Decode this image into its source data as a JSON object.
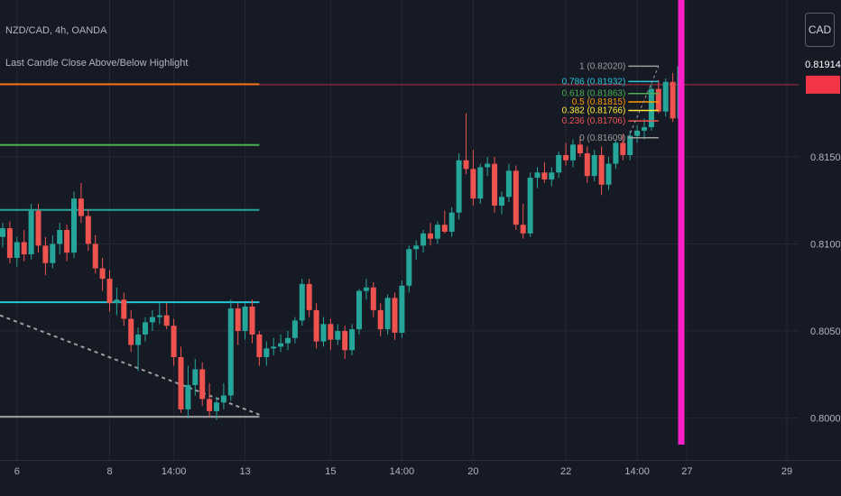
{
  "header": {
    "symbol": "NZD/CAD, 4h, OANDA",
    "indicator": "Last Candle Close Above/Below Highlight"
  },
  "toolbar": {
    "currency_label": "CAD"
  },
  "colors": {
    "background": "#161a25",
    "grid": "#242832",
    "up": "#26a69a",
    "down": "#ef5350",
    "highlight": "#ff1fc8",
    "last_price_bg": "#f23645"
  },
  "chart_data": {
    "type": "candlestick",
    "symbol": "NZD/CAD",
    "timeframe": "4h",
    "broker": "OANDA",
    "ylim": [
      0.7976,
      0.824
    ],
    "y_ticks": [
      "0.80000",
      "0.80500",
      "0.81000",
      "0.81500"
    ],
    "y_tick_values": [
      0.8,
      0.805,
      0.81,
      0.815
    ],
    "x_ticks": [
      "6",
      "8",
      "14:00",
      "13",
      "15",
      "14:00",
      "20",
      "22",
      "14:00",
      "27",
      "29"
    ],
    "x_tick_index": [
      2,
      15,
      24,
      34,
      46,
      56,
      66,
      79,
      89,
      96,
      110
    ],
    "last_price": 0.81914,
    "last_price_label": "0.81914",
    "candles": [
      [
        0.8104,
        0.8112,
        0.8098,
        0.8109
      ],
      [
        0.8109,
        0.8113,
        0.8089,
        0.8092
      ],
      [
        0.8092,
        0.8104,
        0.8087,
        0.8101
      ],
      [
        0.8101,
        0.8108,
        0.809,
        0.8094
      ],
      [
        0.8094,
        0.8123,
        0.8091,
        0.8119
      ],
      [
        0.8119,
        0.8123,
        0.8095,
        0.8099
      ],
      [
        0.8099,
        0.8104,
        0.8082,
        0.8089
      ],
      [
        0.8089,
        0.8105,
        0.8086,
        0.81
      ],
      [
        0.81,
        0.8112,
        0.8094,
        0.8108
      ],
      [
        0.8108,
        0.8111,
        0.809,
        0.8095
      ],
      [
        0.8095,
        0.813,
        0.8092,
        0.8126
      ],
      [
        0.8126,
        0.8135,
        0.8112,
        0.8116
      ],
      [
        0.8116,
        0.812,
        0.8096,
        0.81
      ],
      [
        0.81,
        0.8105,
        0.8083,
        0.8086
      ],
      [
        0.8086,
        0.8092,
        0.8073,
        0.808
      ],
      [
        0.808,
        0.8085,
        0.8061,
        0.8066
      ],
      [
        0.8066,
        0.8075,
        0.8059,
        0.8068
      ],
      [
        0.8068,
        0.8072,
        0.8053,
        0.8057
      ],
      [
        0.8057,
        0.8062,
        0.8038,
        0.8042
      ],
      [
        0.8042,
        0.8052,
        0.8027,
        0.8048
      ],
      [
        0.8048,
        0.8058,
        0.8044,
        0.8055
      ],
      [
        0.8055,
        0.8062,
        0.805,
        0.8058
      ],
      [
        0.8058,
        0.8066,
        0.8054,
        0.8059
      ],
      [
        0.8059,
        0.8066,
        0.8051,
        0.8053
      ],
      [
        0.8053,
        0.8057,
        0.803,
        0.8035
      ],
      [
        0.8035,
        0.8041,
        0.8003,
        0.8005
      ],
      [
        0.8005,
        0.803,
        0.8,
        0.8019
      ],
      [
        0.8019,
        0.8034,
        0.8013,
        0.8028
      ],
      [
        0.8028,
        0.8032,
        0.8007,
        0.8011
      ],
      [
        0.8011,
        0.802,
        0.8001,
        0.8004
      ],
      [
        0.8004,
        0.8012,
        0.7999,
        0.8009
      ],
      [
        0.8009,
        0.802,
        0.8005,
        0.8013
      ],
      [
        0.8013,
        0.8068,
        0.801,
        0.8063
      ],
      [
        0.8063,
        0.8066,
        0.8042,
        0.805
      ],
      [
        0.805,
        0.8066,
        0.8045,
        0.8064
      ],
      [
        0.8064,
        0.8068,
        0.8043,
        0.8048
      ],
      [
        0.8048,
        0.805,
        0.803,
        0.8035
      ],
      [
        0.8035,
        0.8044,
        0.803,
        0.804
      ],
      [
        0.804,
        0.8046,
        0.8036,
        0.8041
      ],
      [
        0.8041,
        0.8048,
        0.8038,
        0.8043
      ],
      [
        0.8043,
        0.805,
        0.8039,
        0.8046
      ],
      [
        0.8046,
        0.8058,
        0.8043,
        0.8056
      ],
      [
        0.8056,
        0.808,
        0.8053,
        0.8077
      ],
      [
        0.8077,
        0.808,
        0.8058,
        0.8062
      ],
      [
        0.8062,
        0.8066,
        0.804,
        0.8044
      ],
      [
        0.8044,
        0.8058,
        0.8041,
        0.8054
      ],
      [
        0.8054,
        0.8057,
        0.8039,
        0.8045
      ],
      [
        0.8045,
        0.8054,
        0.8042,
        0.805
      ],
      [
        0.805,
        0.8053,
        0.8034,
        0.8039
      ],
      [
        0.8039,
        0.8054,
        0.8036,
        0.8051
      ],
      [
        0.8051,
        0.8074,
        0.8048,
        0.8073
      ],
      [
        0.8073,
        0.808,
        0.8068,
        0.8075
      ],
      [
        0.8075,
        0.8078,
        0.8058,
        0.8062
      ],
      [
        0.8062,
        0.8066,
        0.8047,
        0.8051
      ],
      [
        0.8051,
        0.8071,
        0.8048,
        0.8069
      ],
      [
        0.8069,
        0.8072,
        0.8045,
        0.8049
      ],
      [
        0.8049,
        0.8079,
        0.8046,
        0.8076
      ],
      [
        0.8076,
        0.8099,
        0.8072,
        0.8097
      ],
      [
        0.8097,
        0.8102,
        0.8091,
        0.8099
      ],
      [
        0.8099,
        0.8108,
        0.8095,
        0.8106
      ],
      [
        0.8106,
        0.8112,
        0.8099,
        0.8103
      ],
      [
        0.8103,
        0.8113,
        0.81,
        0.8111
      ],
      [
        0.8111,
        0.8119,
        0.8106,
        0.8107
      ],
      [
        0.8107,
        0.8121,
        0.8104,
        0.8118
      ],
      [
        0.8118,
        0.8152,
        0.8114,
        0.8148
      ],
      [
        0.8148,
        0.8175,
        0.814,
        0.8143
      ],
      [
        0.8143,
        0.8154,
        0.8122,
        0.8126
      ],
      [
        0.8126,
        0.8146,
        0.8123,
        0.8144
      ],
      [
        0.8144,
        0.815,
        0.8139,
        0.8146
      ],
      [
        0.8146,
        0.815,
        0.8118,
        0.8122
      ],
      [
        0.8122,
        0.813,
        0.8117,
        0.8127
      ],
      [
        0.8127,
        0.8146,
        0.8124,
        0.8142
      ],
      [
        0.8142,
        0.8145,
        0.8108,
        0.8111
      ],
      [
        0.8111,
        0.8123,
        0.8103,
        0.8106
      ],
      [
        0.8106,
        0.8141,
        0.8104,
        0.8138
      ],
      [
        0.8138,
        0.8144,
        0.8132,
        0.8141
      ],
      [
        0.8141,
        0.8147,
        0.8135,
        0.8137
      ],
      [
        0.8137,
        0.8144,
        0.8133,
        0.8141
      ],
      [
        0.8141,
        0.8153,
        0.8138,
        0.8151
      ],
      [
        0.8151,
        0.8158,
        0.8145,
        0.8148
      ],
      [
        0.8148,
        0.816,
        0.8144,
        0.8157
      ],
      [
        0.8157,
        0.8162,
        0.815,
        0.8152
      ],
      [
        0.8152,
        0.8156,
        0.8135,
        0.8139
      ],
      [
        0.8139,
        0.8154,
        0.8136,
        0.8151
      ],
      [
        0.8151,
        0.8156,
        0.8128,
        0.8134
      ],
      [
        0.8134,
        0.815,
        0.8131,
        0.8146
      ],
      [
        0.8146,
        0.816,
        0.8143,
        0.8158
      ],
      [
        0.8158,
        0.8163,
        0.8148,
        0.8151
      ],
      [
        0.8151,
        0.8165,
        0.8148,
        0.8162
      ],
      [
        0.8162,
        0.8168,
        0.8158,
        0.8165
      ],
      [
        0.8165,
        0.8172,
        0.816,
        0.8167
      ],
      [
        0.8167,
        0.8192,
        0.8165,
        0.8189
      ],
      [
        0.8189,
        0.8194,
        0.8175,
        0.8176
      ],
      [
        0.8176,
        0.8195,
        0.8173,
        0.8193
      ],
      [
        0.8193,
        0.8198,
        0.817,
        0.8172
      ],
      [
        0.8172,
        0.8205,
        0.817,
        0.8202
      ]
    ],
    "horizontal_levels": [
      {
        "price": 0.81916,
        "color": "#ff9800",
        "from_index": 0,
        "to_index": 36
      },
      {
        "price": 0.81568,
        "color": "#4caf50",
        "from_index": 0,
        "to_index": 36
      },
      {
        "price": 0.81195,
        "color": "#26a69a",
        "from_index": 0,
        "to_index": 36
      },
      {
        "price": 0.80665,
        "color": "#26c6da",
        "from_index": 0,
        "to_index": 36
      },
      {
        "price": 0.80008,
        "color": "#9e9e9e",
        "from_index": 0,
        "to_index": 36
      }
    ],
    "trendline": {
      "from": [
        0,
        0.8059
      ],
      "to": [
        36,
        0.8002
      ],
      "color": "#9e9e9e",
      "style": "dashed"
    },
    "last_price_line": {
      "price": 0.81914,
      "color": "#f23645"
    },
    "fibonacci": {
      "levels": [
        {
          "ratio": "1",
          "label": "1 (0.82020)",
          "price": 0.8202,
          "color": "#9e9e9e"
        },
        {
          "ratio": "0.786",
          "label": "0.786 (0.81932)",
          "price": 0.81932,
          "color": "#26c6da"
        },
        {
          "ratio": "0.618",
          "label": "0.618 (0.81863)",
          "price": 0.81863,
          "color": "#4caf50"
        },
        {
          "ratio": "0.5",
          "label": "0.5 (0.81815)",
          "price": 0.81815,
          "color": "#ff9800"
        },
        {
          "ratio": "0.382",
          "label": "0.382 (0.81766)",
          "price": 0.81766,
          "color": "#ffeb3b"
        },
        {
          "ratio": "0.236",
          "label": "0.236 (0.81706)",
          "price": 0.81706,
          "color": "#ef5350"
        },
        {
          "ratio": "0",
          "label": "0 (0.81609)",
          "price": 0.81609,
          "color": "#9e9e9e"
        }
      ],
      "from_index": 87,
      "to_index": 91
    },
    "highlight_index": 95,
    "highlight_color": "#ff1fc8",
    "grid": true,
    "last_label_color": "#b2b5be"
  }
}
